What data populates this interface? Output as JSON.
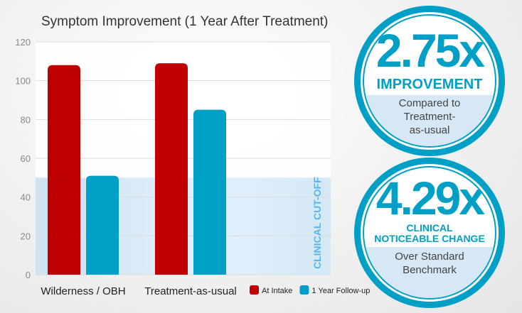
{
  "chart_data": {
    "type": "bar",
    "title": "Symptom Improvement (1 Year After Treatment)",
    "categories": [
      "Wilderness / OBH",
      "Treatment-as-usual"
    ],
    "series": [
      {
        "name": "At Intake",
        "values": [
          108,
          109
        ],
        "color": "#c00000"
      },
      {
        "name": "1 Year Follow-up",
        "values": [
          51,
          85
        ],
        "color": "#00a0c6"
      }
    ],
    "ylim": [
      0,
      120
    ],
    "yticks": [
      0,
      20,
      40,
      60,
      80,
      100,
      120
    ],
    "grid": true,
    "legend": "bottom-right",
    "threshold": {
      "value": 50,
      "label": "CLINICAL CUT-OFF",
      "color": "#5ab4ee"
    }
  },
  "badges": [
    {
      "value": "2.75x",
      "caption": "IMPROVEMENT",
      "sub": [
        "Compared to",
        "Treatment-",
        "as-usual"
      ]
    },
    {
      "value": "4.29x",
      "caption": [
        "CLINICAL",
        "NOTICEABLE CHANGE"
      ],
      "sub": [
        "Over Standard",
        "Benchmark"
      ]
    }
  ]
}
